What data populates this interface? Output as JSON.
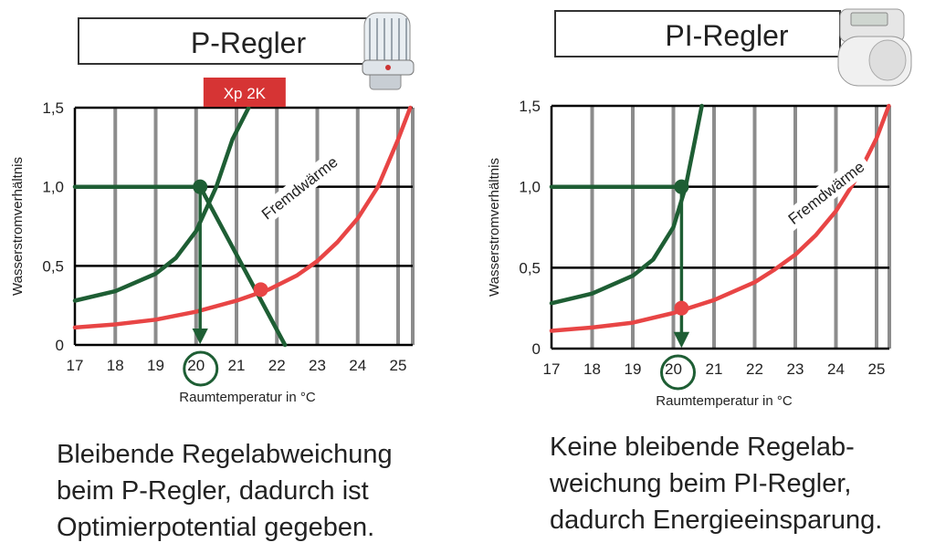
{
  "colors": {
    "grid_vertical": "#8c8c8c",
    "grid_horizontal": "#000000",
    "green": "#1e5e34",
    "red": "#e84545",
    "badge_bg": "#d63434",
    "badge_text": "#ffffff"
  },
  "left_panel": {
    "title": "P-Regler",
    "badge": "Xp 2K",
    "fremdwaerme_label": "Fremdwärme",
    "caption": "Bleibende Regelabweichung\nbeim P-Regler, dadurch ist\nOptimierpotential gegeben.",
    "device_icon": "thermostat-head-icon"
  },
  "right_panel": {
    "title": "PI-Regler",
    "fremdwaerme_label": "Fremdwärme",
    "caption": "Keine bleibende Regelab-\nweichung beim PI-Regler,\ndadurch Energieeinsparung.",
    "device_icon": "electronic-thermostat-icon"
  },
  "chart_data": [
    {
      "type": "line",
      "title": "P-Regler",
      "xlabel": "Raumtemperatur in °C",
      "ylabel": "Wasserstromverhältnis",
      "x_ticks": [
        17,
        18,
        19,
        20,
        21,
        22,
        23,
        24,
        25
      ],
      "y_ticks": [
        0,
        0.5,
        1.0,
        1.5
      ],
      "y_tick_labels": [
        "0",
        "0,5",
        "1,0",
        "1,5"
      ],
      "xlim": [
        17,
        25.5
      ],
      "ylim": [
        0,
        1.5
      ],
      "series": [
        {
          "role": "heating",
          "x": [
            17,
            18,
            19,
            19.5,
            20,
            20.5,
            20.9,
            21.3
          ],
          "y": [
            0.28,
            0.34,
            0.45,
            0.55,
            0.72,
            1.0,
            1.3,
            1.5
          ]
        },
        {
          "role": "fremdwaerme",
          "x": [
            17,
            18,
            19,
            20,
            21,
            21.8,
            22.5,
            23,
            23.5,
            24,
            24.5,
            25,
            25.3
          ],
          "y": [
            0.11,
            0.13,
            0.16,
            0.21,
            0.28,
            0.35,
            0.44,
            0.53,
            0.65,
            0.8,
            1.0,
            1.3,
            1.5
          ]
        },
        {
          "role": "p-characteristic",
          "x": [
            20.1,
            22.2
          ],
          "y": [
            1.0,
            0.0
          ]
        },
        {
          "role": "setpoint",
          "x": [
            17,
            20.1
          ],
          "y": [
            1.0,
            1.0
          ]
        }
      ],
      "points": [
        {
          "role": "setpoint",
          "x": 20.1,
          "y": 1.0
        },
        {
          "role": "operating-point",
          "x": 21.6,
          "y": 0.35
        }
      ],
      "arrow": {
        "x": 20.1,
        "from": 1.0,
        "to": 0.02
      },
      "circle_tick": 20,
      "badge_x": 21.2
    },
    {
      "type": "line",
      "title": "PI-Regler",
      "xlabel": "Raumtemperatur in °C",
      "ylabel": "Wasserstromverhältnis",
      "x_ticks": [
        17,
        18,
        19,
        20,
        21,
        22,
        23,
        24,
        25
      ],
      "y_ticks": [
        0,
        0.5,
        1.0,
        1.5
      ],
      "y_tick_labels": [
        "0",
        "0,5",
        "1,0",
        "1,5"
      ],
      "xlim": [
        17,
        25.5
      ],
      "ylim": [
        0,
        1.5
      ],
      "series": [
        {
          "role": "heating",
          "x": [
            17,
            18,
            19,
            19.5,
            20,
            20.3,
            20.5,
            20.7
          ],
          "y": [
            0.28,
            0.34,
            0.45,
            0.55,
            0.75,
            1.0,
            1.25,
            1.5
          ]
        },
        {
          "role": "fremdwaerme",
          "x": [
            17,
            18,
            19,
            20,
            21,
            22,
            22.5,
            23,
            23.5,
            24,
            24.5,
            25,
            25.3
          ],
          "y": [
            0.11,
            0.13,
            0.16,
            0.22,
            0.3,
            0.41,
            0.49,
            0.58,
            0.7,
            0.85,
            1.05,
            1.3,
            1.5
          ]
        },
        {
          "role": "setpoint",
          "x": [
            17,
            20.2
          ],
          "y": [
            1.0,
            1.0
          ]
        }
      ],
      "points": [
        {
          "role": "setpoint",
          "x": 20.2,
          "y": 1.0
        },
        {
          "role": "operating-point",
          "x": 20.2,
          "y": 0.25
        }
      ],
      "arrow": {
        "x": 20.2,
        "from": 1.0,
        "to": 0.02
      },
      "circle_tick": 20
    }
  ]
}
